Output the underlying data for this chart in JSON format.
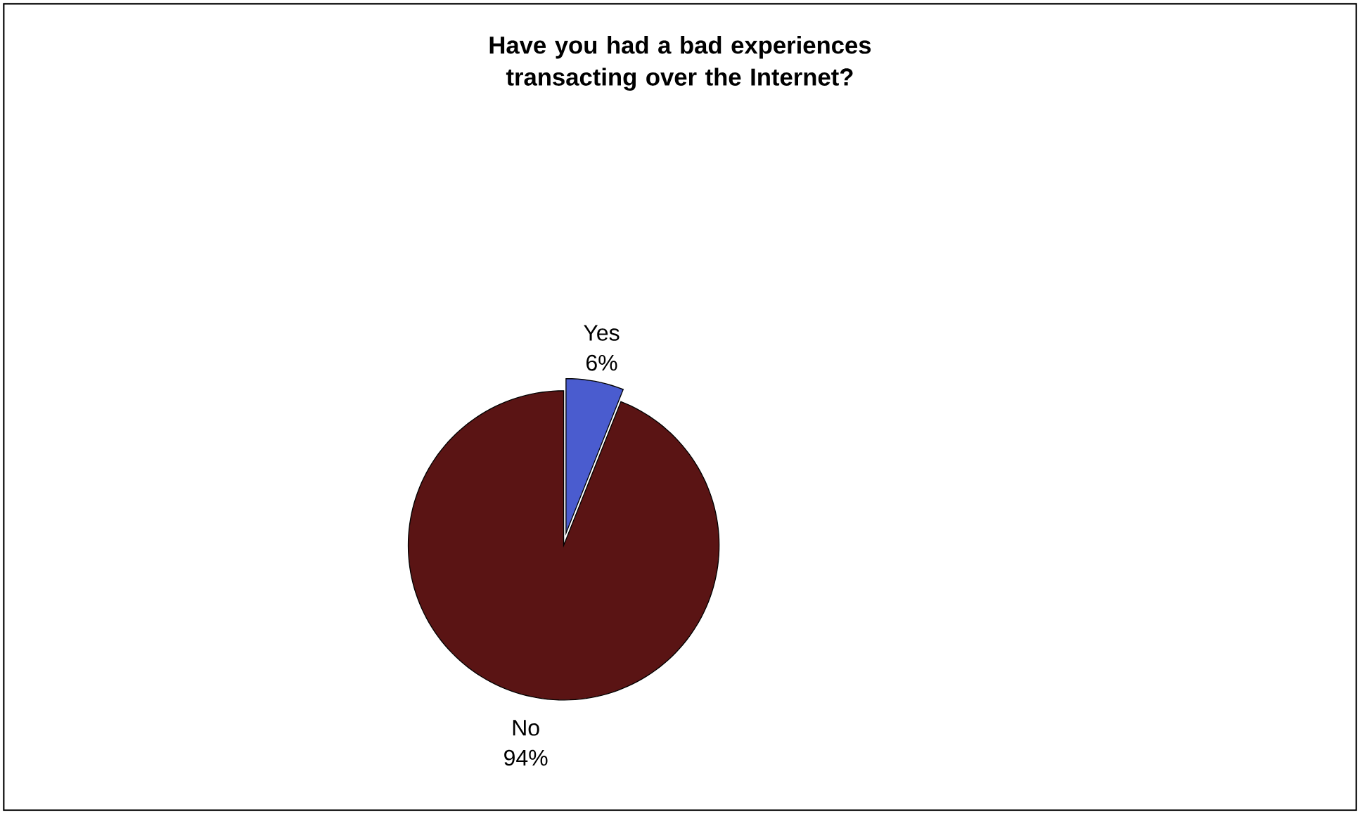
{
  "chart_data": {
    "type": "pie",
    "title": "Have you had a bad experiences transacting over the Internet?",
    "categories": [
      "Yes",
      "No"
    ],
    "values": [
      6,
      94
    ],
    "colors": [
      "#4a5ccf",
      "#5a1414"
    ],
    "value_labels": [
      "6%",
      "94%"
    ]
  }
}
